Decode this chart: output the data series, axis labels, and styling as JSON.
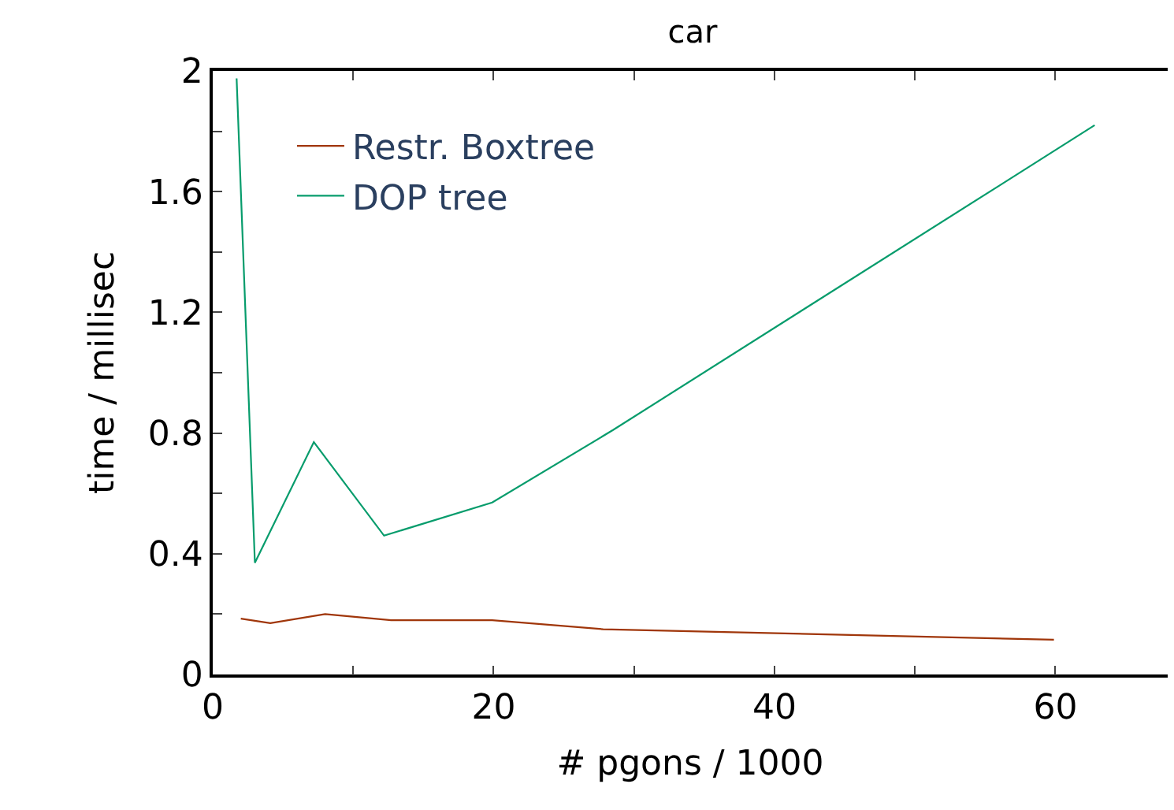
{
  "chart_data": {
    "type": "line",
    "title": "car",
    "xlabel": "# pgons / 1000",
    "ylabel": "time / millisec",
    "xlim": [
      0,
      68
    ],
    "xticks": [
      0,
      {
        "value": 10,
        "label": null
      },
      20,
      {
        "value": 30,
        "label": null
      },
      40,
      {
        "value": 50,
        "label": null
      },
      60
    ],
    "ylim": [
      0,
      2
    ],
    "yticks": [
      0,
      {
        "value": 0.2,
        "label": null
      },
      0.4,
      {
        "value": 0.6,
        "label": null
      },
      0.8,
      {
        "value": 1.0,
        "label": null
      },
      1.2,
      {
        "value": 1.4,
        "label": null
      },
      1.6,
      {
        "value": 1.8,
        "label": null
      },
      2
    ],
    "legend": "top left",
    "marker": "none",
    "line_style": "solid",
    "series": [
      {
        "name": "Restr. Boxtree",
        "color": "#a0360a",
        "x": [
          2.0,
          4.1,
          8.0,
          12.7,
          19.9,
          27.8,
          59.9
        ],
        "values": [
          0.185,
          0.17,
          0.2,
          0.18,
          0.18,
          0.15,
          0.115
        ]
      },
      {
        "name": "DOP tree",
        "color": "#079c6c",
        "x": [
          1.7,
          3.0,
          7.2,
          12.2,
          19.9,
          28.5,
          62.8
        ],
        "values": [
          1.975,
          0.37,
          0.77,
          0.46,
          0.57,
          0.81,
          1.82
        ]
      }
    ]
  }
}
